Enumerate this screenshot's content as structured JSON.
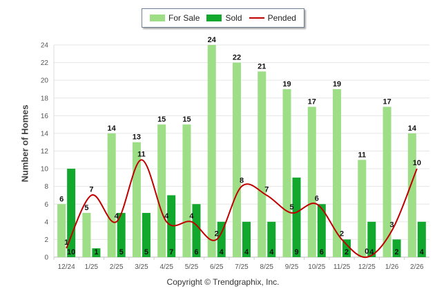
{
  "chart_data": {
    "type": "bar",
    "title": "",
    "xlabel": "",
    "ylabel": "Number of Homes",
    "ylim": [
      0,
      24
    ],
    "ytick_step": 2,
    "yticks": [
      "0",
      "2",
      "4",
      "6",
      "8",
      "10",
      "12",
      "14",
      "16",
      "18",
      "20",
      "22",
      "24"
    ],
    "categories": [
      "12/24",
      "1/25",
      "2/25",
      "3/25",
      "4/25",
      "5/25",
      "6/25",
      "7/25",
      "8/25",
      "9/25",
      "10/25",
      "11/25",
      "12/25",
      "1/26",
      "2/26"
    ],
    "series": [
      {
        "name": "For Sale",
        "kind": "bar",
        "color": "#9dde86",
        "values": [
          6,
          5,
          14,
          13,
          15,
          15,
          24,
          22,
          21,
          19,
          17,
          19,
          11,
          17,
          14
        ],
        "labels": [
          "6",
          "5",
          "14",
          "13",
          "15",
          "15",
          "24",
          "22",
          "21",
          "19",
          "17",
          "19",
          "11",
          "17",
          "14"
        ]
      },
      {
        "name": "Sold",
        "kind": "bar",
        "color": "#12a82d",
        "values": [
          10,
          1,
          5,
          5,
          7,
          6,
          4,
          4,
          4,
          9,
          6,
          2,
          4,
          2,
          4
        ],
        "labels": [
          "10",
          "1",
          "5",
          "5",
          "7",
          "6",
          "4",
          "4",
          "4",
          "9",
          "6",
          "2",
          "4",
          "2",
          "4"
        ]
      },
      {
        "name": "Pended",
        "kind": "line",
        "color": "#c00000",
        "values": [
          1,
          7,
          4,
          11,
          4,
          4,
          2,
          8,
          7,
          5,
          6,
          2,
          0,
          3,
          10
        ],
        "labels": [
          "1",
          "7",
          "4",
          "11",
          "4",
          "4",
          "2",
          "8",
          "7",
          "5",
          "6",
          "2",
          "0",
          "3",
          "10"
        ]
      }
    ],
    "legend": "top-center",
    "grid": true
  },
  "legend": {
    "for_sale": "For Sale",
    "sold": "Sold",
    "pended": "Pended"
  },
  "axis": {
    "y_title": "Number of Homes"
  },
  "footer": {
    "copyright": "Copyright © Trendgraphix, Inc."
  }
}
